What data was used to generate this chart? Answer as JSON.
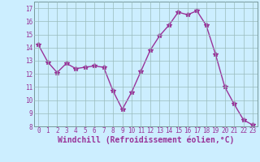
{
  "x": [
    0,
    1,
    2,
    3,
    4,
    5,
    6,
    7,
    8,
    9,
    10,
    11,
    12,
    13,
    14,
    15,
    16,
    17,
    18,
    19,
    20,
    21,
    22,
    23
  ],
  "y": [
    14.2,
    12.9,
    12.1,
    12.8,
    12.4,
    12.5,
    12.6,
    12.5,
    10.7,
    9.3,
    10.6,
    12.2,
    13.8,
    14.9,
    15.7,
    16.7,
    16.5,
    16.8,
    15.7,
    13.5,
    11.0,
    9.7,
    8.5,
    8.1
  ],
  "line_color": "#993399",
  "marker": "*",
  "marker_size": 4,
  "bg_color": "#cceeff",
  "grid_color": "#99bbbb",
  "xlabel": "Windchill (Refroidissement éolien,°C)",
  "ylim": [
    8,
    17.5
  ],
  "xlim": [
    -0.5,
    23.5
  ],
  "yticks": [
    8,
    9,
    10,
    11,
    12,
    13,
    14,
    15,
    16,
    17
  ],
  "xtick_labels": [
    "0",
    "1",
    "2",
    "3",
    "4",
    "5",
    "6",
    "7",
    "8",
    "9",
    "10",
    "11",
    "12",
    "13",
    "14",
    "15",
    "16",
    "17",
    "18",
    "19",
    "20",
    "21",
    "22",
    "23"
  ],
  "tick_fontsize": 5.5,
  "xlabel_fontsize": 7,
  "line_width": 1.0,
  "label_color": "#993399"
}
